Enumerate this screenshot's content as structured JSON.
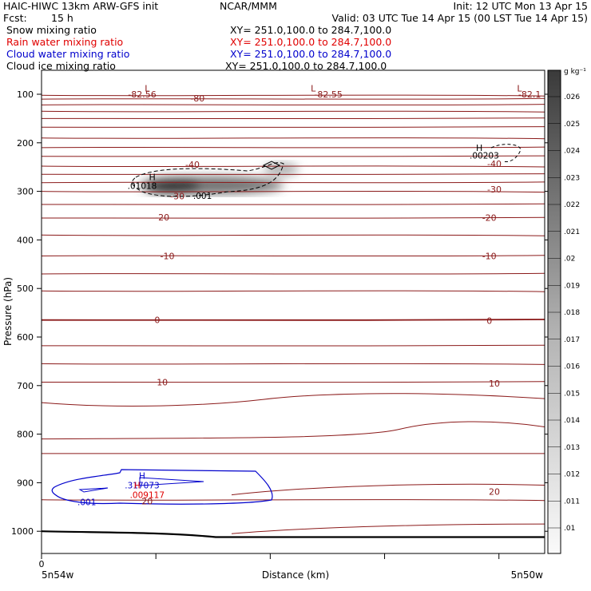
{
  "header": {
    "title_left": "HAIC-HIWC 13km ARW-GFS init",
    "center_org": "NCAR/MMM",
    "init": "Init: 12 UTC Mon 13 Apr 15",
    "fcst_label": "Fcst:",
    "fcst_value": "15 h",
    "valid": "Valid: 03 UTC Tue 14 Apr 15 (00 LST Tue 14 Apr 15)"
  },
  "fields": [
    {
      "name": "Snow mixing ratio",
      "xy": "XY= 251.0,100.0 to 284.7,100.0",
      "color": "#000000"
    },
    {
      "name": "Rain water mixing ratio",
      "xy": "XY= 251.0,100.0 to 284.7,100.0",
      "color": "#e00000"
    },
    {
      "name": "Cloud water mixing ratio",
      "xy": "XY= 251.0,100.0 to 284.7,100.0",
      "color": "#0000cc"
    },
    {
      "name": "Cloud ice mixing ratio",
      "xy": "XY= 251.0,100.0 to 284.7,100.0",
      "color": "#000000"
    }
  ],
  "chart_data": {
    "type": "heatmap",
    "ylabel": "Pressure (hPa)",
    "xlabel": "Distance (km)",
    "x_tick_label": "0",
    "x_endpoints": [
      "5n54w",
      "5n50w"
    ],
    "y_ticks": [
      100,
      200,
      300,
      400,
      500,
      600,
      700,
      800,
      900,
      1000
    ],
    "ylim": [
      1050,
      80
    ],
    "xlim": [
      0,
      1
    ],
    "colorbar": {
      "unit": "g kg⁻¹",
      "ticks": [
        ".026",
        ".025",
        ".024",
        ".023",
        ".022",
        ".021",
        ".02",
        ".019",
        ".018",
        ".017",
        ".016",
        ".015",
        ".014",
        ".013",
        ".012",
        ".011",
        ".01"
      ]
    },
    "temperature_isotherms": [
      {
        "label": "-82.56",
        "x": 0.2,
        "p": 100
      },
      {
        "label": "-80",
        "x": 0.31,
        "p": 108
      },
      {
        "label": "-82.55",
        "x": 0.57,
        "p": 100
      },
      {
        "label": "-82.1",
        "x": 0.97,
        "p": 100
      },
      {
        "label": "-40",
        "x": 0.3,
        "p": 245
      },
      {
        "label": "-40",
        "x": 0.9,
        "p": 243
      },
      {
        "label": "-30",
        "x": 0.27,
        "p": 310
      },
      {
        "label": "-30",
        "x": 0.9,
        "p": 296
      },
      {
        "label": "-20",
        "x": 0.24,
        "p": 353
      },
      {
        "label": "-20",
        "x": 0.89,
        "p": 354
      },
      {
        "label": "-10",
        "x": 0.25,
        "p": 433
      },
      {
        "label": "-10",
        "x": 0.89,
        "p": 433
      },
      {
        "label": "0",
        "x": 0.23,
        "p": 565
      },
      {
        "label": "0",
        "x": 0.89,
        "p": 566
      },
      {
        "label": "10",
        "x": 0.24,
        "p": 693
      },
      {
        "label": "10",
        "x": 0.9,
        "p": 695
      },
      {
        "label": "20",
        "x": 0.9,
        "p": 918
      },
      {
        "label": "20",
        "x": 0.21,
        "p": 938
      }
    ],
    "extrema": [
      {
        "symbol": "L",
        "x": 0.21,
        "p": 88
      },
      {
        "symbol": "L",
        "x": 0.54,
        "p": 88
      },
      {
        "symbol": "L",
        "x": 0.95,
        "p": 88
      },
      {
        "symbol": "H",
        "x": 0.22,
        "p": 270
      },
      {
        "symbol": "H",
        "x": 0.87,
        "p": 210
      }
    ],
    "value_labels": [
      {
        "text": ".01018",
        "x": 0.2,
        "p": 288,
        "color": "#000000"
      },
      {
        "text": ".001",
        "x": 0.32,
        "p": 309,
        "color": "#000000"
      },
      {
        "text": ".00203",
        "x": 0.88,
        "p": 226,
        "color": "#000000"
      },
      {
        "text": "H",
        "x": 0.2,
        "p": 885,
        "color": "#0000cc"
      },
      {
        "text": ".317073",
        "x": 0.2,
        "p": 905,
        "color": "#0000cc"
      },
      {
        "text": ".001",
        "x": 0.09,
        "p": 940,
        "color": "#0000cc"
      },
      {
        "text": "H",
        "x": 0.19,
        "p": 905,
        "color": "#e00000"
      },
      {
        "text": ".009117",
        "x": 0.21,
        "p": 925,
        "color": "#e00000"
      }
    ],
    "snow_max_gkg": 0.01018
  }
}
